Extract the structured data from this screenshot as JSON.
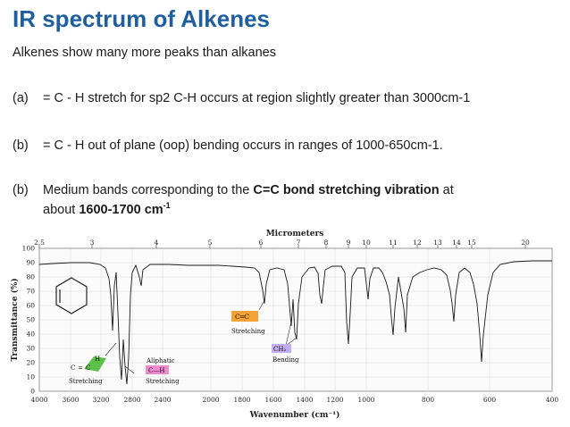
{
  "slide": {
    "title": "IR spectrum of Alkenes",
    "intro": "Alkenes show many more peaks than alkanes",
    "points": [
      {
        "label": "(a)",
        "text": "= C - H  stretch for sp2  C-H  occurs at region slightly greater than 3000cm-1"
      },
      {
        "label": "(b)",
        "text": "= C - H out of plane (oop) bending occurs in ranges of 1000-650cm-1."
      }
    ],
    "point3": {
      "label": "(b)",
      "pre": "Medium bands corresponding to the ",
      "bold1": "C=C bond stretching vibration",
      "mid": " at",
      "line2_pre": "about ",
      "bold2": "1600-1700 cm",
      "sup": "-1"
    }
  },
  "spectrum": {
    "top_axis_title": "Micrometers",
    "top_ticks": [
      "2.5",
      "3",
      "4",
      "5",
      "6",
      "7",
      "8",
      "9",
      "10",
      "11",
      "12",
      "13",
      "14",
      "15",
      "20"
    ],
    "y_axis_title": "Transmittance (%)",
    "y_ticks": [
      "100",
      "90",
      "80",
      "70",
      "60",
      "50",
      "40",
      "30",
      "20",
      "10",
      "0"
    ],
    "x_ticks": [
      "4000",
      "3600",
      "3200",
      "2800",
      "2400",
      "2000",
      "1800",
      "1600",
      "1400",
      "1200",
      "1000",
      "800",
      "600",
      "400"
    ],
    "x_axis_title": "Wavenumber (cm⁻¹)",
    "annotations": {
      "vinyl_h": "H",
      "vinyl_c": "C",
      "vinyl_c_eq": "C",
      "vinyl_eq": "=",
      "vinyl_stretch": "Stretching",
      "aliphatic_title": "Aliphatic",
      "aliphatic_bond": "C—H",
      "aliphatic_stretch": "Stretching",
      "cc_bond": "C═C",
      "cc_stretch": "Stretching",
      "ch2": "CH₂",
      "ch2_bend": "Bending"
    },
    "colors": {
      "green": "#5cc04a",
      "pink": "#f08ad0",
      "orange": "#f4a233",
      "lavender": "#c4aef0",
      "title": "#1f5f9f"
    }
  }
}
